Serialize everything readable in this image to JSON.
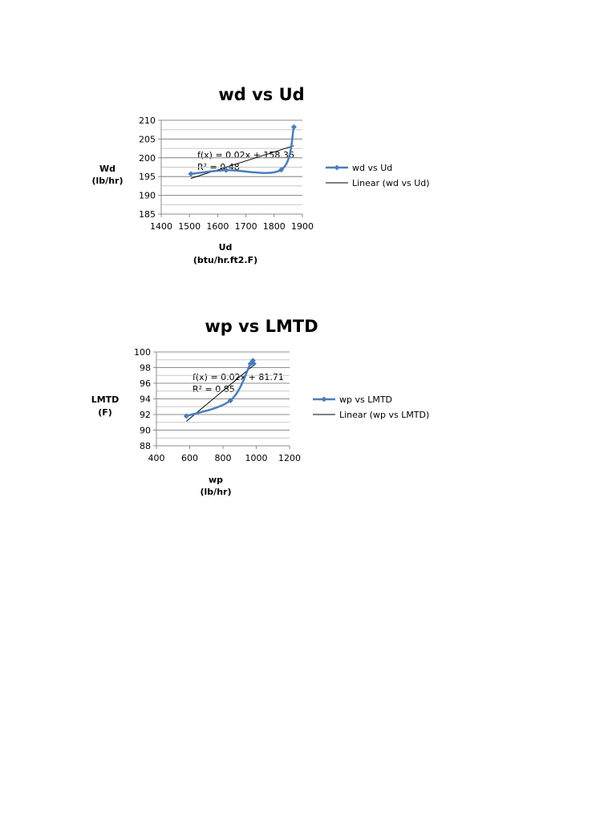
{
  "chart_data": [
    {
      "type": "scatter",
      "title": "wd vs Ud",
      "xlabel": [
        "Ud",
        "(btu/hr.ft2.F)"
      ],
      "ylabel": [
        "Wd",
        "(lb/hr)"
      ],
      "xlim": [
        1400,
        1900
      ],
      "ylim": [
        185,
        210
      ],
      "xticks": [
        "1400",
        "1500",
        "1600",
        "1700",
        "1800",
        "1900"
      ],
      "yticks": [
        "185",
        "190",
        "195",
        "200",
        "205",
        "210"
      ],
      "grid": true,
      "legend_position": "right",
      "series": [
        {
          "name": "wd vs Ud",
          "color": "#4a7ebb",
          "smooth": true,
          "x": [
            1505,
            1630,
            1825,
            1870
          ],
          "y": [
            195.7,
            196.7,
            196.8,
            208.2
          ]
        }
      ],
      "trendline": {
        "name": "Linear (wd vs Ud)",
        "color": "#000000",
        "slope": 0.02,
        "intercept": 158.36,
        "x_range": [
          1505,
          1870
        ]
      },
      "equation": "f(x) = 0.02x + 158.36",
      "r2": "R² = 0.48"
    },
    {
      "type": "scatter",
      "title": "wp vs LMTD",
      "xlabel": [
        "wp",
        "(lb/hr)"
      ],
      "ylabel": [
        "LMTD",
        "(F)"
      ],
      "xlim": [
        400,
        1200
      ],
      "ylim": [
        88,
        100
      ],
      "xticks": [
        "400",
        "600",
        "800",
        "1000",
        "1200"
      ],
      "yticks": [
        "88",
        "90",
        "92",
        "94",
        "96",
        "98",
        "100"
      ],
      "grid": true,
      "legend_position": "right",
      "series": [
        {
          "name": "wp vs LMTD",
          "color": "#4a7ebb",
          "smooth": true,
          "x": [
            580,
            845,
            965,
            980,
            985
          ],
          "y": [
            91.8,
            93.8,
            98.5,
            98.9,
            98.5
          ]
        }
      ],
      "trendline": {
        "name": "Linear (wp vs LMTD)",
        "color": "#000000",
        "slope": 0.02,
        "intercept": 81.71,
        "x_range": [
          580,
          985
        ]
      },
      "equation": "f(x) = 0.02x + 81.71",
      "r2": "R² = 0.85"
    }
  ]
}
